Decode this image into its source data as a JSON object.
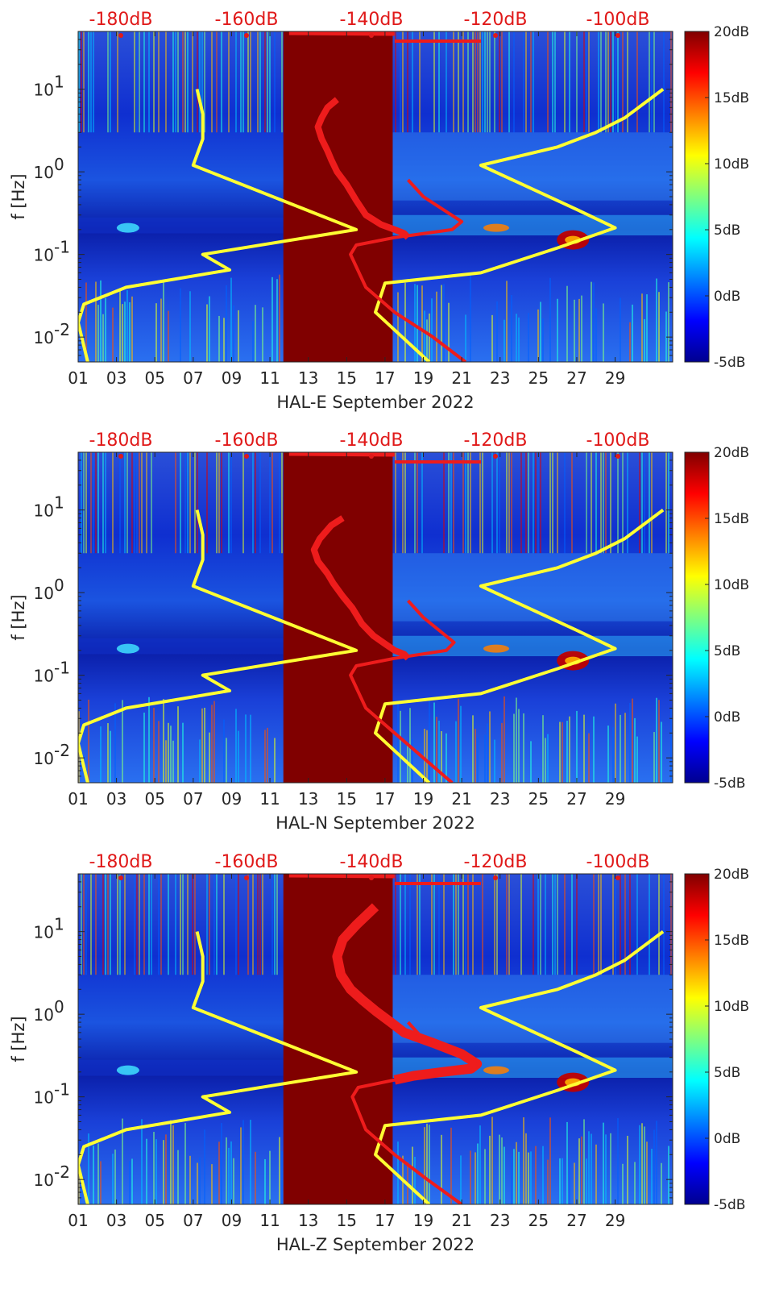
{
  "chart_data": [
    {
      "type": "heatmap",
      "title": "HAL-E",
      "xlabel": "HAL-E September 2022",
      "ylabel": "f [Hz]",
      "xlim": [
        1,
        32
      ],
      "ylim": [
        0.005,
        50
      ],
      "yscale": "log",
      "x_ticks": [
        "01",
        "03",
        "05",
        "07",
        "09",
        "11",
        "13",
        "15",
        "17",
        "19",
        "21",
        "23",
        "25",
        "27",
        "29"
      ],
      "y_ticks": [
        "10^-2",
        "10^-1",
        "10^0",
        "10^1"
      ],
      "top_db_labels": [
        "-180dB",
        "-160dB",
        "-140dB",
        "-120dB",
        "-100dB"
      ],
      "colorbar": {
        "ticks": [
          "20dB",
          "15dB",
          "10dB",
          "5dB",
          "0dB",
          "-5dB"
        ],
        "range": [
          -5,
          20
        ]
      },
      "data_gap_days": [
        11.7,
        17.4
      ],
      "yellow_curve": {
        "day": [
          1.5,
          1.0,
          1.3,
          3.5,
          8.9,
          7.5,
          15.5,
          7.0,
          7.5,
          7.5,
          7.2
        ],
        "f": [
          0.005,
          0.015,
          0.025,
          0.04,
          0.065,
          0.1,
          0.2,
          1.2,
          2.5,
          5,
          10
        ]
      },
      "red_curve": {
        "day": [
          14.5,
          14.0,
          13.7,
          13.5,
          13.7,
          14.0,
          14.2,
          14.5,
          15.0,
          15.5,
          16.0,
          16.8,
          17.5,
          18.0,
          18.2
        ],
        "f": [
          7.5,
          6,
          4.5,
          3.5,
          2.5,
          1.8,
          1.4,
          1.0,
          0.7,
          0.45,
          0.3,
          0.23,
          0.2,
          0.18,
          0.16
        ]
      },
      "yellow_curve_right": {
        "day": [
          19.3,
          16.5,
          17.0,
          22.0,
          26.0,
          29.0,
          27.0,
          22.0,
          26.0,
          28.0,
          29.5,
          31.5
        ],
        "f": [
          0.005,
          0.02,
          0.045,
          0.06,
          0.12,
          0.21,
          0.35,
          1.2,
          2.0,
          3.0,
          4.5,
          10
        ]
      },
      "red_curve_right": {
        "day": [
          21.2,
          19.5,
          17.5,
          16.0,
          15.2,
          15.5,
          17.5,
          20.5,
          21.0,
          19.0,
          18.2
        ],
        "f": [
          0.005,
          0.01,
          0.02,
          0.04,
          0.1,
          0.13,
          0.16,
          0.2,
          0.25,
          0.5,
          0.8
        ]
      }
    },
    {
      "type": "heatmap",
      "title": "HAL-N",
      "xlabel": "HAL-N September 2022",
      "ylabel": "f [Hz]",
      "xlim": [
        1,
        32
      ],
      "ylim": [
        0.005,
        50
      ],
      "yscale": "log",
      "x_ticks": [
        "01",
        "03",
        "05",
        "07",
        "09",
        "11",
        "13",
        "15",
        "17",
        "19",
        "21",
        "23",
        "25",
        "27",
        "29"
      ],
      "y_ticks": [
        "10^-2",
        "10^-1",
        "10^0",
        "10^1"
      ],
      "top_db_labels": [
        "-180dB",
        "-160dB",
        "-140dB",
        "-120dB",
        "-100dB"
      ],
      "colorbar": {
        "ticks": [
          "20dB",
          "15dB",
          "10dB",
          "5dB",
          "0dB",
          "-5dB"
        ],
        "range": [
          -5,
          20
        ]
      },
      "data_gap_days": [
        11.7,
        17.4
      ],
      "yellow_curve": {
        "day": [
          1.5,
          1.0,
          1.3,
          3.5,
          8.9,
          7.5,
          15.5,
          7.0,
          7.5,
          7.5,
          7.2
        ],
        "f": [
          0.005,
          0.015,
          0.025,
          0.04,
          0.065,
          0.1,
          0.2,
          1.2,
          2.5,
          5,
          10
        ]
      },
      "red_curve": {
        "day": [
          14.8,
          14.2,
          13.6,
          13.3,
          13.5,
          14.0,
          14.3,
          14.8,
          15.3,
          15.8,
          16.4,
          17.0,
          17.5,
          18.0,
          18.2
        ],
        "f": [
          8,
          6.5,
          4.5,
          3.3,
          2.4,
          1.7,
          1.3,
          0.9,
          0.65,
          0.42,
          0.3,
          0.24,
          0.2,
          0.18,
          0.16
        ]
      },
      "yellow_curve_right": {
        "day": [
          19.3,
          16.5,
          17.0,
          22.0,
          26.0,
          29.0,
          27.0,
          22.0,
          26.0,
          28.0,
          29.5,
          31.5
        ],
        "f": [
          0.005,
          0.02,
          0.045,
          0.06,
          0.12,
          0.21,
          0.35,
          1.2,
          2.0,
          3.0,
          4.5,
          10
        ]
      },
      "red_curve_right": {
        "day": [
          20.5,
          19.0,
          17.5,
          16.0,
          15.2,
          15.5,
          17.5,
          20.2,
          20.6,
          19.0,
          18.2
        ],
        "f": [
          0.005,
          0.01,
          0.02,
          0.04,
          0.1,
          0.13,
          0.16,
          0.2,
          0.25,
          0.5,
          0.8
        ]
      }
    },
    {
      "type": "heatmap",
      "title": "HAL-Z",
      "xlabel": "HAL-Z September 2022",
      "ylabel": "f [Hz]",
      "xlim": [
        1,
        32
      ],
      "ylim": [
        0.005,
        50
      ],
      "yscale": "log",
      "x_ticks": [
        "01",
        "03",
        "05",
        "07",
        "09",
        "11",
        "13",
        "15",
        "17",
        "19",
        "21",
        "23",
        "25",
        "27",
        "29"
      ],
      "y_ticks": [
        "10^-2",
        "10^-1",
        "10^0",
        "10^1"
      ],
      "top_db_labels": [
        "-180dB",
        "-160dB",
        "-140dB",
        "-120dB",
        "-100dB"
      ],
      "colorbar": {
        "ticks": [
          "20dB",
          "15dB",
          "10dB",
          "5dB",
          "0dB",
          "-5dB"
        ],
        "range": [
          -5,
          20
        ]
      },
      "data_gap_days": [
        11.7,
        17.4
      ],
      "yellow_curve": {
        "day": [
          1.5,
          1.0,
          1.3,
          3.5,
          8.9,
          7.5,
          15.5,
          7.0,
          7.5,
          7.5,
          7.2
        ],
        "f": [
          0.005,
          0.015,
          0.025,
          0.04,
          0.065,
          0.1,
          0.2,
          1.2,
          2.5,
          5,
          10
        ]
      },
      "red_curve": {
        "day": [
          16.5,
          15.5,
          14.8,
          14.5,
          14.7,
          15.2,
          15.8,
          16.5,
          17.3,
          18.0,
          19.5,
          21.0,
          21.8,
          21.5,
          20.0,
          18.5,
          17.5
        ],
        "f": [
          20,
          12,
          8,
          5,
          3,
          2,
          1.5,
          1.1,
          0.8,
          0.6,
          0.45,
          0.33,
          0.25,
          0.22,
          0.2,
          0.18,
          0.16
        ]
      },
      "yellow_curve_right": {
        "day": [
          19.3,
          16.5,
          17.0,
          22.0,
          26.0,
          29.0,
          27.0,
          22.0,
          26.0,
          28.0,
          29.5,
          31.5
        ],
        "f": [
          0.005,
          0.02,
          0.045,
          0.06,
          0.12,
          0.21,
          0.35,
          1.2,
          2.0,
          3.0,
          4.5,
          10
        ]
      },
      "red_curve_right": {
        "day": [
          21.0,
          19.2,
          17.5,
          16.0,
          15.3,
          15.6,
          17.5,
          21.5,
          21.8,
          19.0,
          18.2
        ],
        "f": [
          0.005,
          0.01,
          0.02,
          0.04,
          0.1,
          0.13,
          0.16,
          0.2,
          0.25,
          0.5,
          0.8
        ]
      }
    }
  ],
  "colors": {
    "gap": "#800000",
    "yellow_curve": "#ffff33",
    "red_curve": "#ee1c1c",
    "axis": "#262626",
    "db_label": "#e01919"
  }
}
